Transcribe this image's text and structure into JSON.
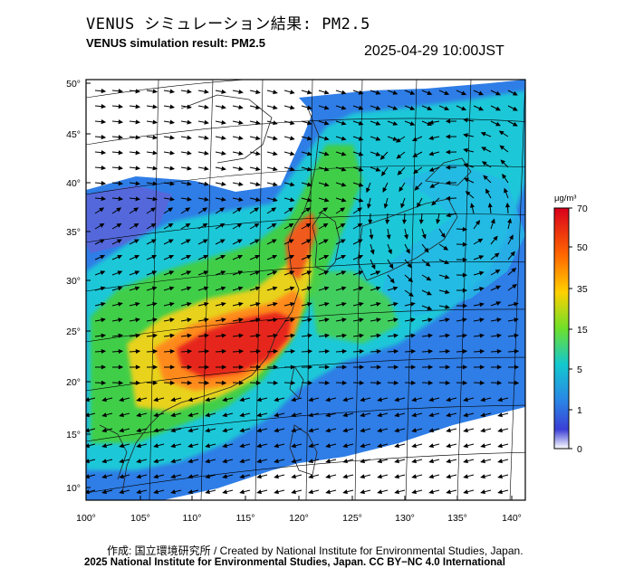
{
  "header": {
    "title_jp": "VENUS シミュレーション結果: PM2.5",
    "title_en": "VENUS simulation result: PM2.5",
    "timestamp": "2025-04-29 10:00JST"
  },
  "map": {
    "lat_labels": [
      "50°",
      "45°",
      "40°",
      "35°",
      "30°",
      "25°",
      "20°",
      "15°",
      "10°"
    ],
    "lon_labels": [
      "100°",
      "105°",
      "110°",
      "115°",
      "120°",
      "125°",
      "130°",
      "135°",
      "140°"
    ],
    "colors": {
      "land_clear": "#ffffff",
      "low": "#2f6fe0",
      "blue": "#1f9be8",
      "cyan": "#22d3dc",
      "green": "#3fd24a",
      "yellow": "#e8d21f",
      "orange": "#ff8a1a",
      "red": "#e6281c"
    }
  },
  "colorbar": {
    "unit": "μg/m³",
    "ticks": [
      "70",
      "50",
      "35",
      "15",
      "5",
      "1",
      "0"
    ],
    "stops": [
      "#d9001c",
      "#ff6a00",
      "#ffd000",
      "#6ee02a",
      "#13c8cf",
      "#2a86e6",
      "#3b3fd6",
      "#ffffff"
    ]
  },
  "footer": {
    "credit_line": "作成: 国立環境研究所 / Created by National Institute for Environmental Studies, Japan.",
    "license_line": "2025 National Institute for Environmental Studies, Japan. CC BY−NC 4.0 International"
  }
}
